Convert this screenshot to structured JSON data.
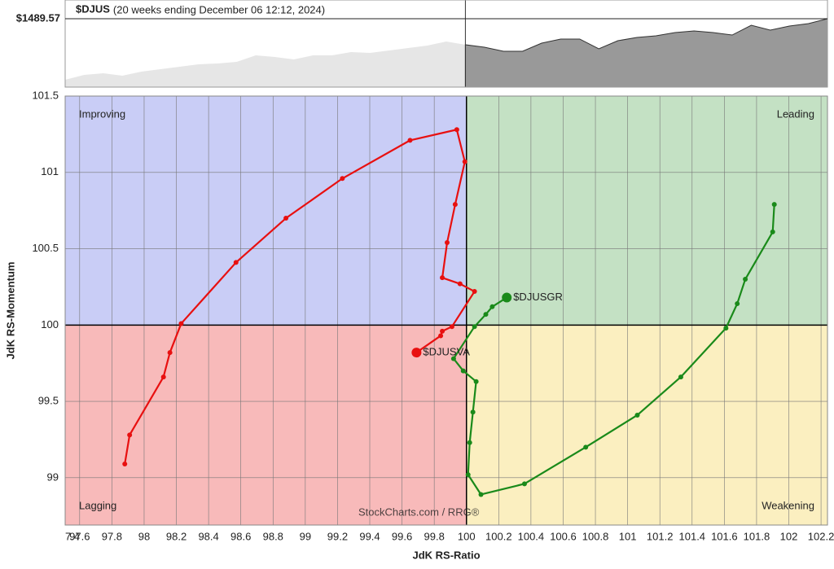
{
  "chart_data": [
    {
      "type": "area",
      "title": "$DJUS",
      "subtitle": "(20 weeks ending December 06 12:12, 2024)",
      "values": [
        1320.3,
        1333.9,
        1338.4,
        1331.6,
        1342.9,
        1349.7,
        1356.4,
        1363.2,
        1365.5,
        1370.0,
        1388.0,
        1383.5,
        1376.7,
        1388.0,
        1388.0,
        1397.1,
        1394.8,
        1401.6,
        1408.3,
        1415.1,
        1426.4,
        1417.4,
        1410.6,
        1399.3,
        1399.3,
        1421.9,
        1433.2,
        1433.2,
        1406.1,
        1428.6,
        1437.7,
        1442.2,
        1451.2,
        1455.7,
        1451.2,
        1444.4,
        1471.5,
        1457.9,
        1469.3,
        1476.0,
        1489.57
      ],
      "colors": [
        "#e6e6e6",
        "#999999"
      ],
      "shaded_from_index": 21,
      "ylim": [
        1300,
        1541.5
      ],
      "reference": {
        "value": 1489.57,
        "label": "$1489.57"
      }
    },
    {
      "type": "rrg",
      "xlabel": "JdK RS-Ratio",
      "ylabel": "JdK RS-Momentum",
      "watermark": "StockCharts.com / RRG®",
      "quadrants": [
        {
          "name": "Improving",
          "color": "#c9cdf6",
          "text_color": "#4a55c8"
        },
        {
          "name": "Leading",
          "color": "#c4e1c4",
          "text_color": "#2a8a2a"
        },
        {
          "name": "Lagging",
          "color": "#f8baba",
          "text_color": "#d03030"
        },
        {
          "name": "Weakening",
          "color": "#fbefc0",
          "text_color": "#d8b020"
        }
      ],
      "xlim": [
        97.51,
        102.24
      ],
      "ylim": [
        98.69,
        101.5
      ],
      "xticks": [
        {
          "value": 97.4,
          "label": "7.4"
        },
        97.6,
        97.8,
        98,
        98.2,
        98.4,
        98.6,
        98.8,
        99,
        99.2,
        99.4,
        99.6,
        99.8,
        100,
        100.2,
        100.4,
        100.6,
        100.8,
        101,
        101.2,
        101.4,
        101.6,
        101.8,
        102,
        102.2
      ],
      "yticks": [
        99,
        99.5,
        100,
        100.5,
        101,
        101.5
      ],
      "series": [
        {
          "name": "$DJUSVA",
          "color": "#e81010",
          "x": [
            97.88,
            97.91,
            98.12,
            98.16,
            98.23,
            98.57,
            98.88,
            99.23,
            99.65,
            99.94,
            99.99,
            99.93,
            99.88,
            99.85,
            99.96,
            100.05,
            99.91,
            99.85,
            99.84,
            99.69
          ],
          "values": [
            99.09,
            99.28,
            99.66,
            99.82,
            100.01,
            100.41,
            100.7,
            100.96,
            101.21,
            101.28,
            101.07,
            100.79,
            100.54,
            100.31,
            100.27,
            100.22,
            99.99,
            99.96,
            99.93,
            99.82
          ]
        },
        {
          "name": "$DJUSGR",
          "color": "#1a8a1a",
          "x": [
            101.91,
            101.9,
            101.73,
            101.68,
            101.61,
            101.33,
            101.06,
            100.74,
            100.36,
            100.09,
            100.01,
            100.02,
            100.04,
            100.06,
            99.98,
            99.92,
            100.05,
            100.12,
            100.16,
            100.25
          ],
          "values": [
            100.79,
            100.61,
            100.3,
            100.14,
            99.98,
            99.66,
            99.41,
            99.2,
            98.96,
            98.89,
            99.02,
            99.23,
            99.43,
            99.63,
            99.7,
            99.78,
            99.99,
            100.07,
            100.12,
            100.18
          ]
        }
      ]
    }
  ]
}
